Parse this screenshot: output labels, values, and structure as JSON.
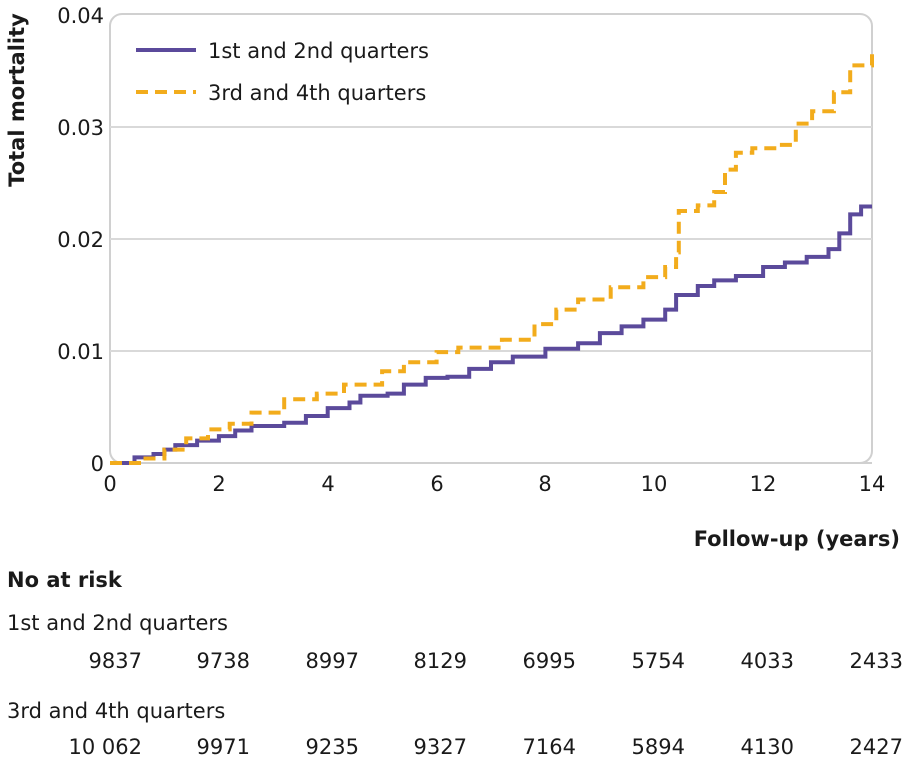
{
  "chart_data": {
    "type": "line",
    "xlabel": "Follow-up (years)",
    "ylabel": "Total mortality",
    "xlim": [
      0,
      14
    ],
    "ylim": [
      0,
      0.04
    ],
    "x_ticks": [
      "0",
      "2",
      "4",
      "6",
      "8",
      "10",
      "12",
      "14"
    ],
    "y_ticks": [
      "0",
      "0.01",
      "0.02",
      "0.03",
      "0.04"
    ],
    "grid": "horizontal",
    "legend_position": "top-left",
    "series": [
      {
        "name": "1st and 2nd quarters",
        "color": "#5b4a9b",
        "style": "solid",
        "points": [
          [
            0,
            0
          ],
          [
            0.4,
            0
          ],
          [
            0.45,
            0.0005
          ],
          [
            0.8,
            0.0008
          ],
          [
            1.0,
            0.0012
          ],
          [
            1.2,
            0.0016
          ],
          [
            1.6,
            0.002
          ],
          [
            2.0,
            0.0024
          ],
          [
            2.3,
            0.0029
          ],
          [
            2.6,
            0.0033
          ],
          [
            3.2,
            0.0036
          ],
          [
            3.6,
            0.0042
          ],
          [
            4.0,
            0.0049
          ],
          [
            4.4,
            0.0054
          ],
          [
            4.6,
            0.006
          ],
          [
            5.1,
            0.0062
          ],
          [
            5.4,
            0.007
          ],
          [
            5.8,
            0.0076
          ],
          [
            6.2,
            0.0077
          ],
          [
            6.6,
            0.0084
          ],
          [
            7.0,
            0.009
          ],
          [
            7.4,
            0.0095
          ],
          [
            8.0,
            0.0102
          ],
          [
            8.6,
            0.0107
          ],
          [
            9.0,
            0.0116
          ],
          [
            9.4,
            0.0122
          ],
          [
            9.8,
            0.0128
          ],
          [
            10.2,
            0.0137
          ],
          [
            10.4,
            0.015
          ],
          [
            10.8,
            0.0158
          ],
          [
            11.1,
            0.0163
          ],
          [
            11.5,
            0.0167
          ],
          [
            12.0,
            0.0175
          ],
          [
            12.4,
            0.0179
          ],
          [
            12.8,
            0.0184
          ],
          [
            13.2,
            0.0191
          ],
          [
            13.4,
            0.0205
          ],
          [
            13.6,
            0.0222
          ],
          [
            13.8,
            0.0229
          ],
          [
            14.0,
            0.0229
          ]
        ]
      },
      {
        "name": "3rd and 4th quarters",
        "color": "#f2ac1c",
        "style": "dashed",
        "points": [
          [
            0,
            0
          ],
          [
            0.5,
            0
          ],
          [
            0.6,
            0.0004
          ],
          [
            1.0,
            0.0012
          ],
          [
            1.4,
            0.0022
          ],
          [
            1.8,
            0.003
          ],
          [
            2.2,
            0.0035
          ],
          [
            2.6,
            0.0045
          ],
          [
            3.2,
            0.0057
          ],
          [
            3.8,
            0.0062
          ],
          [
            4.3,
            0.007
          ],
          [
            5.0,
            0.0082
          ],
          [
            5.4,
            0.009
          ],
          [
            6.0,
            0.0099
          ],
          [
            6.4,
            0.0103
          ],
          [
            7.2,
            0.011
          ],
          [
            7.8,
            0.0124
          ],
          [
            8.2,
            0.0137
          ],
          [
            8.6,
            0.0146
          ],
          [
            9.2,
            0.0157
          ],
          [
            9.8,
            0.0166
          ],
          [
            10.2,
            0.0175
          ],
          [
            10.4,
            0.0188
          ],
          [
            10.45,
            0.0225
          ],
          [
            10.8,
            0.023
          ],
          [
            11.1,
            0.0242
          ],
          [
            11.3,
            0.0262
          ],
          [
            11.5,
            0.0277
          ],
          [
            11.8,
            0.0281
          ],
          [
            12.3,
            0.0284
          ],
          [
            12.6,
            0.0303
          ],
          [
            12.9,
            0.0314
          ],
          [
            13.3,
            0.0331
          ],
          [
            13.6,
            0.0355
          ],
          [
            14.0,
            0.0365
          ]
        ]
      }
    ]
  },
  "risk_table": {
    "heading": "No at risk",
    "groups": [
      {
        "label": "1st and 2nd quarters",
        "values": [
          "9837",
          "9738",
          "8997",
          "8129",
          "6995",
          "5754",
          "4033",
          "2433"
        ]
      },
      {
        "label": "3rd and 4th quarters",
        "values": [
          "10 062",
          "9971",
          "9235",
          "9327",
          "7164",
          "5894",
          "4130",
          "2427"
        ]
      }
    ]
  }
}
